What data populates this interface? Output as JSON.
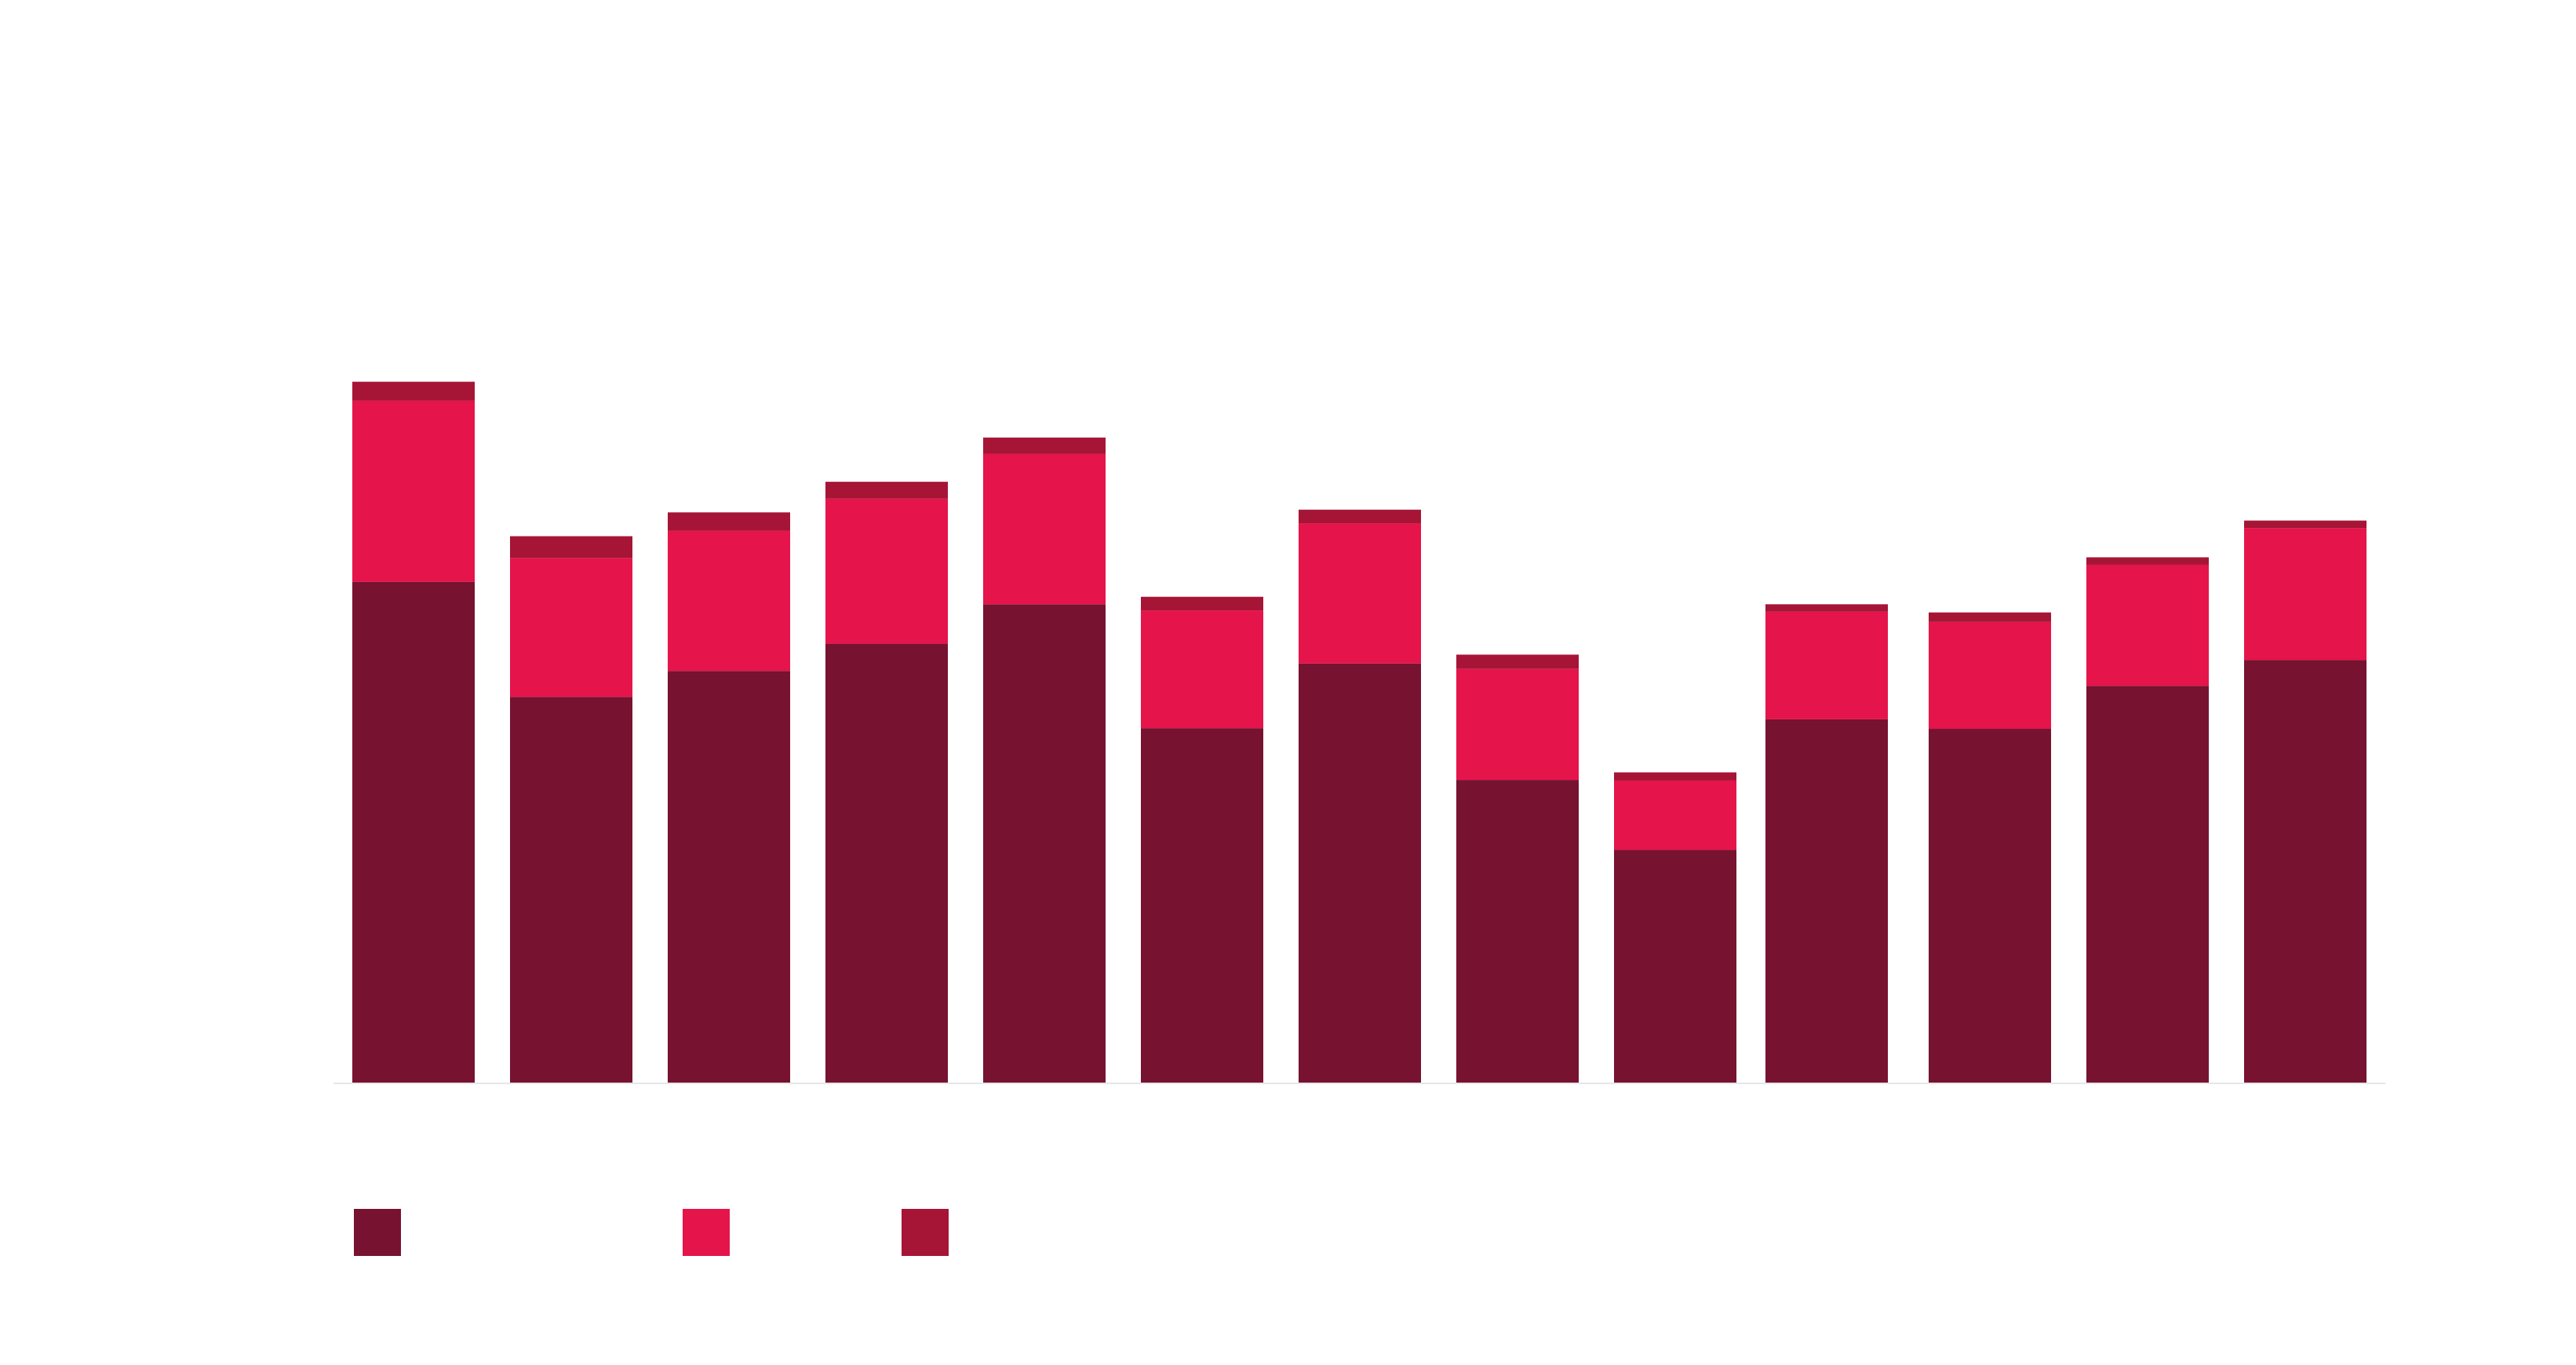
{
  "chart_data": {
    "type": "bar",
    "stacked": true,
    "title": "",
    "xlabel": "",
    "ylabel": "",
    "ylim": [
      0,
      1200
    ],
    "grid": false,
    "legend_position": "bottom-left",
    "categories": [
      "",
      "",
      "",
      "",
      "",
      "",
      "",
      "",
      "",
      "",
      "",
      "",
      ""
    ],
    "series": [
      {
        "name": "",
        "color": "#771230",
        "values": [
          737,
          568,
          606,
          646,
          704,
          522,
          617,
          446,
          343,
          535,
          521,
          584,
          622
        ]
      },
      {
        "name": "",
        "color": "#E5144B",
        "values": [
          266,
          204,
          206,
          213,
          221,
          173,
          206,
          163,
          102,
          158,
          157,
          178,
          194
        ]
      },
      {
        "name": "",
        "color": "#A61536",
        "values": [
          28,
          32,
          27,
          25,
          24,
          20,
          20,
          21,
          12,
          11,
          14,
          11,
          11
        ]
      }
    ]
  }
}
